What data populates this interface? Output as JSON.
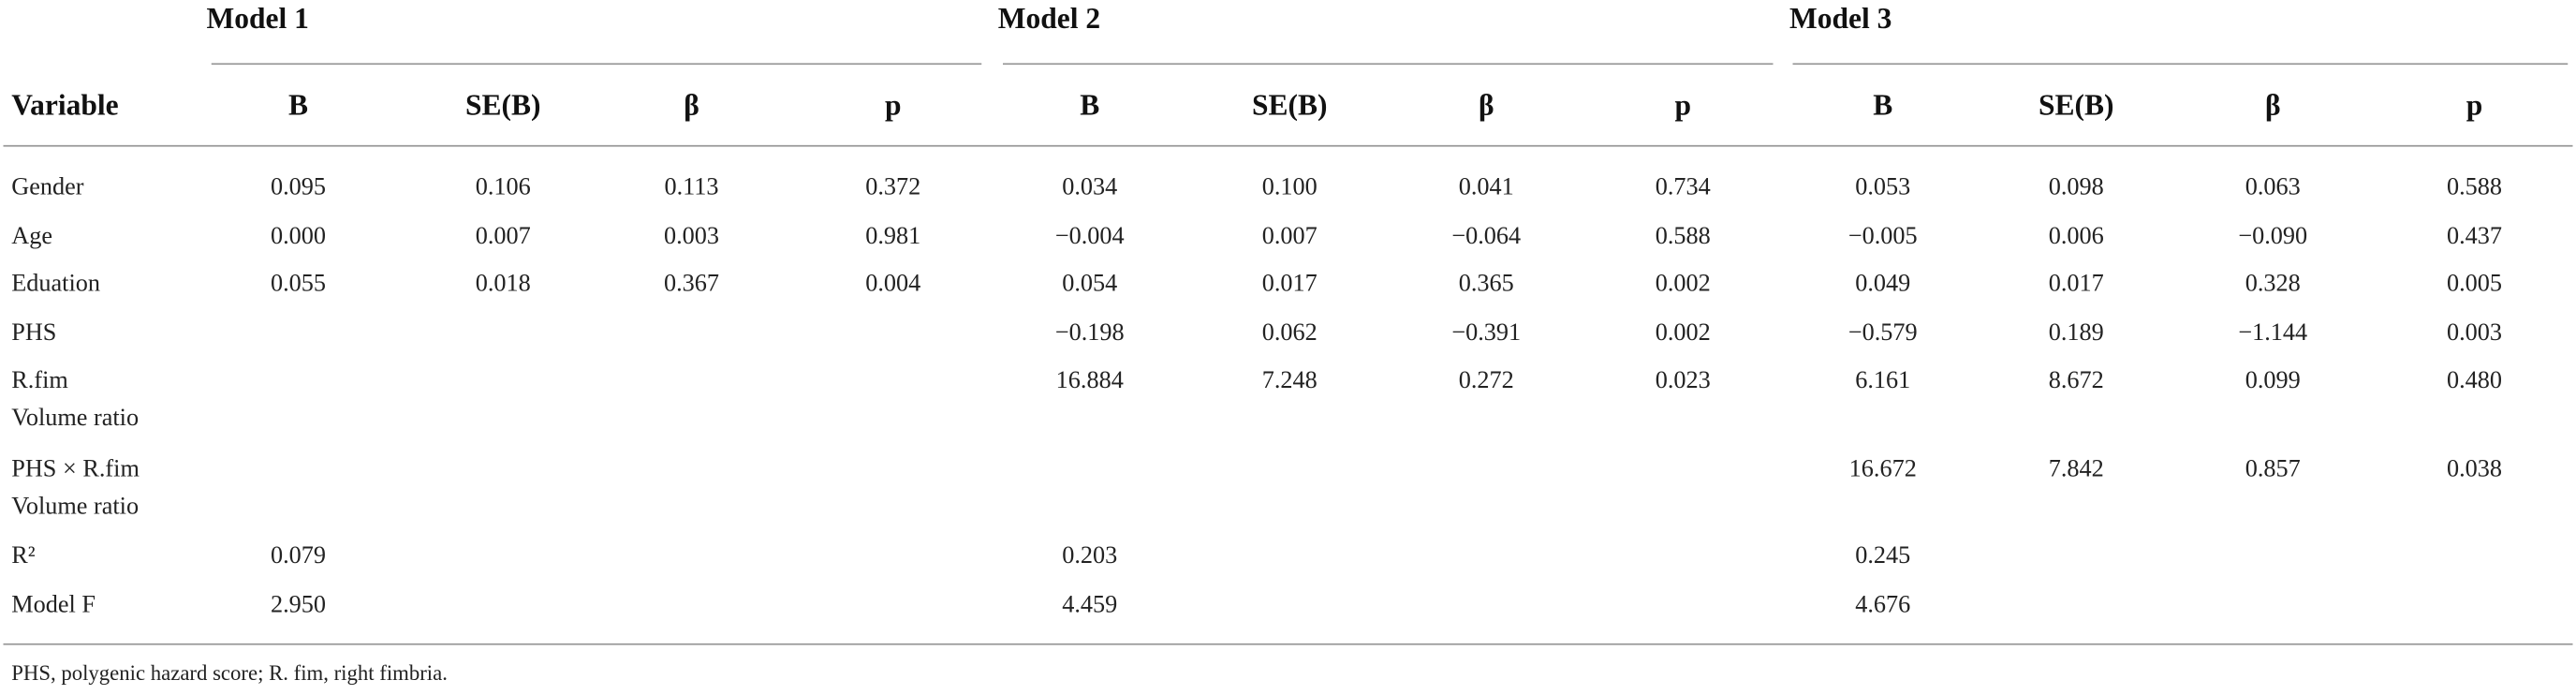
{
  "table": {
    "groups": [
      "Model 1",
      "Model 2",
      "Model 3"
    ],
    "header": [
      "Variable",
      "B",
      "SE(B)",
      "β",
      "p",
      "B",
      "SE(B)",
      "β",
      "p",
      "B",
      "SE(B)",
      "β",
      "p"
    ],
    "rows": [
      {
        "label": [
          "Gender"
        ],
        "cells": [
          "0.095",
          "0.106",
          "0.113",
          "0.372",
          "0.034",
          "0.100",
          "0.041",
          "0.734",
          "0.053",
          "0.098",
          "0.063",
          "0.588"
        ]
      },
      {
        "label": [
          "Age"
        ],
        "cells": [
          "0.000",
          "0.007",
          "0.003",
          "0.981",
          "−0.004",
          "0.007",
          "−0.064",
          "0.588",
          "−0.005",
          "0.006",
          "−0.090",
          "0.437"
        ]
      },
      {
        "label": [
          "Eduation"
        ],
        "cells": [
          "0.055",
          "0.018",
          "0.367",
          "0.004",
          "0.054",
          "0.017",
          "0.365",
          "0.002",
          "0.049",
          "0.017",
          "0.328",
          "0.005"
        ]
      },
      {
        "label": [
          "PHS"
        ],
        "cells": [
          null,
          null,
          null,
          null,
          "−0.198",
          "0.062",
          "−0.391",
          "0.002",
          "−0.579",
          "0.189",
          "−1.144",
          "0.003"
        ]
      },
      {
        "label": [
          "R.fim",
          "Volume ratio"
        ],
        "cells": [
          null,
          null,
          null,
          null,
          "16.884",
          "7.248",
          "0.272",
          "0.023",
          "6.161",
          "8.672",
          "0.099",
          "0.480"
        ]
      },
      {
        "label": [
          "PHS × R.fim",
          "Volume ratio"
        ],
        "cells": [
          null,
          null,
          null,
          null,
          null,
          null,
          null,
          null,
          "16.672",
          "7.842",
          "0.857",
          "0.038"
        ]
      },
      {
        "label": [
          "R²"
        ],
        "cells": [
          "0.079",
          null,
          null,
          null,
          "0.203",
          null,
          null,
          null,
          "0.245",
          null,
          null,
          null
        ]
      },
      {
        "label": [
          "Model F"
        ],
        "cells": [
          "2.950",
          null,
          null,
          null,
          "4.459",
          null,
          null,
          null,
          "4.676",
          null,
          null,
          null
        ]
      }
    ],
    "footnote": "PHS, polygenic hazard score; R. fim, right fimbria."
  }
}
